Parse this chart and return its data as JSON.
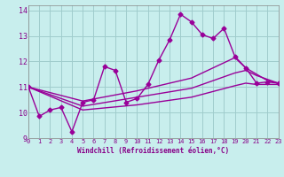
{
  "background_color": "#c8eeed",
  "grid_color": "#a0cccc",
  "line_color": "#990099",
  "xlabel": "Windchill (Refroidissement éolien,°C)",
  "xlim": [
    0,
    23
  ],
  "ylim": [
    9,
    14.2
  ],
  "xticks": [
    0,
    1,
    2,
    3,
    4,
    5,
    6,
    7,
    8,
    9,
    10,
    11,
    12,
    13,
    14,
    15,
    16,
    17,
    18,
    19,
    20,
    21,
    22,
    23
  ],
  "yticks": [
    9,
    10,
    11,
    12,
    13,
    14
  ],
  "series": [
    {
      "x": [
        0,
        1,
        2,
        3,
        4,
        5,
        6,
        7,
        8,
        9,
        10,
        11,
        12,
        13,
        14,
        15,
        16,
        17,
        18,
        19,
        20,
        21,
        22,
        23
      ],
      "y": [
        11.0,
        9.85,
        10.1,
        10.2,
        9.25,
        10.4,
        10.5,
        11.8,
        11.65,
        10.4,
        10.55,
        11.1,
        12.05,
        12.85,
        13.85,
        13.55,
        13.05,
        12.9,
        13.3,
        12.2,
        11.75,
        11.15,
        11.2,
        11.15
      ],
      "marker": "D",
      "markersize": 2.5,
      "linewidth": 1.0
    },
    {
      "x": [
        0,
        23
      ],
      "y": [
        11.0,
        11.15
      ],
      "extra_points": false,
      "marker": null,
      "markersize": 0,
      "linewidth": 1.0
    },
    {
      "x": [
        0,
        23
      ],
      "y": [
        11.0,
        11.15
      ],
      "extra_points": false,
      "marker": null,
      "markersize": 0,
      "linewidth": 1.0
    },
    {
      "x": [
        0,
        23
      ],
      "y": [
        11.0,
        11.15
      ],
      "extra_points": false,
      "marker": null,
      "markersize": 0,
      "linewidth": 1.0
    }
  ],
  "smooth_lines": [
    {
      "x": [
        0,
        5,
        10,
        15,
        19,
        20,
        21,
        22,
        23
      ],
      "y": [
        11.0,
        10.45,
        10.85,
        11.35,
        12.15,
        11.75,
        11.5,
        11.25,
        11.15
      ]
    },
    {
      "x": [
        0,
        5,
        10,
        15,
        19,
        20,
        21,
        22,
        23
      ],
      "y": [
        11.0,
        10.25,
        10.6,
        10.95,
        11.55,
        11.65,
        11.45,
        11.3,
        11.15
      ]
    },
    {
      "x": [
        0,
        5,
        10,
        15,
        19,
        20,
        21,
        22,
        23
      ],
      "y": [
        11.0,
        10.1,
        10.3,
        10.6,
        11.05,
        11.15,
        11.1,
        11.1,
        11.1
      ]
    }
  ]
}
